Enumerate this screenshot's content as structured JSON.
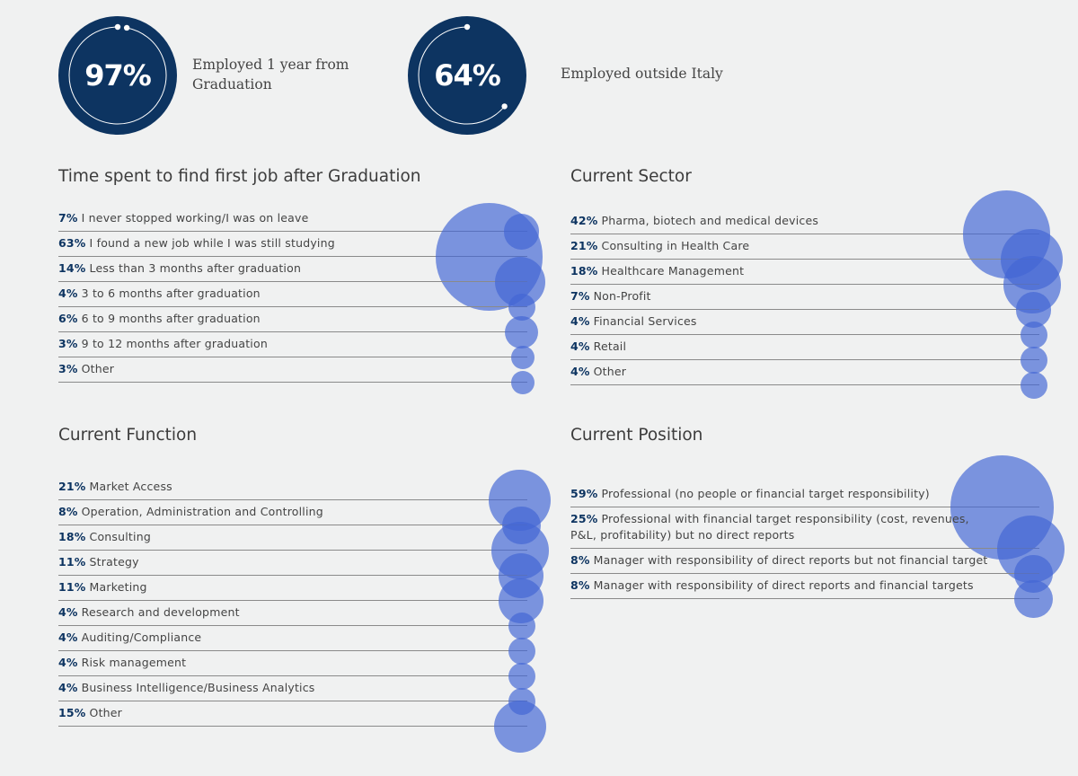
{
  "kpis": [
    {
      "value": "97%",
      "label": "Employed 1 year from Graduation",
      "fraction": 0.97
    },
    {
      "value": "64%",
      "label": "Employed outside Italy",
      "fraction": 0.64
    }
  ],
  "colors": {
    "navy": "#0d3461",
    "bubble": "#4265d4",
    "background": "#f0f1f1",
    "rule": "#8a8a8a"
  },
  "sections": {
    "time_to_job": {
      "title": "Time spent to find first job after Graduation",
      "rows": [
        {
          "pct": "7%",
          "label": "I never stopped working/I was on leave"
        },
        {
          "pct": "63%",
          "label": "I found a new job while I was still studying"
        },
        {
          "pct": "14%",
          "label": "Less than 3 months after graduation"
        },
        {
          "pct": "4%",
          "label": "3 to 6 months after graduation"
        },
        {
          "pct": "6%",
          "label": "6 to 9 months after graduation"
        },
        {
          "pct": "3%",
          "label": "9 to 12 months after graduation"
        },
        {
          "pct": "3%",
          "label": "Other"
        }
      ]
    },
    "sector": {
      "title": "Current Sector",
      "rows": [
        {
          "pct": "42%",
          "label": "Pharma, biotech and medical devices"
        },
        {
          "pct": "21%",
          "label": "Consulting in Health Care"
        },
        {
          "pct": "18%",
          "label": "Healthcare Management"
        },
        {
          "pct": "7%",
          "label": "Non-Profit"
        },
        {
          "pct": "4%",
          "label": "Financial Services"
        },
        {
          "pct": "4%",
          "label": "Retail"
        },
        {
          "pct": "4%",
          "label": "Other"
        }
      ]
    },
    "function": {
      "title": "Current Function",
      "rows": [
        {
          "pct": "21%",
          "label": "Market Access"
        },
        {
          "pct": "8%",
          "label": "Operation, Administration and Controlling"
        },
        {
          "pct": "18%",
          "label": "Consulting"
        },
        {
          "pct": "11%",
          "label": "Strategy"
        },
        {
          "pct": "11%",
          "label": "Marketing"
        },
        {
          "pct": "4%",
          "label": "Research and development"
        },
        {
          "pct": "4%",
          "label": "Auditing/Compliance"
        },
        {
          "pct": "4%",
          "label": "Risk management"
        },
        {
          "pct": "4%",
          "label": "Business Intelligence/Business Analytics"
        },
        {
          "pct": "15%",
          "label": "Other"
        }
      ]
    },
    "position": {
      "title": "Current Position",
      "rows": [
        {
          "pct": "59%",
          "label": "Professional (no people or financial target responsibility)"
        },
        {
          "pct": "25%",
          "label": "Professional with financial target responsibility (cost, revenues, P&L, profitability) but no direct reports"
        },
        {
          "pct": "8%",
          "label": "Manager with responsibility of direct reports but not financial target"
        },
        {
          "pct": "8%",
          "label": "Manager with responsibility of direct reports and financial targets"
        }
      ]
    }
  },
  "chart_data": [
    {
      "type": "bubble",
      "title": "Time spent to find first job after Graduation",
      "categories": [
        "I never stopped working/I was on leave",
        "I found a new job while I was still studying",
        "Less than 3 months after graduation",
        "3 to 6 months after graduation",
        "6 to 9 months after graduation",
        "9 to 12 months after graduation",
        "Other"
      ],
      "values": [
        7,
        63,
        14,
        4,
        6,
        3,
        3
      ],
      "unit": "%"
    },
    {
      "type": "bubble",
      "title": "Current Sector",
      "categories": [
        "Pharma, biotech and medical devices",
        "Consulting in Health Care",
        "Healthcare Management",
        "Non-Profit",
        "Financial Services",
        "Retail",
        "Other"
      ],
      "values": [
        42,
        21,
        18,
        7,
        4,
        4,
        4
      ],
      "unit": "%"
    },
    {
      "type": "bubble",
      "title": "Current Function",
      "categories": [
        "Market Access",
        "Operation, Administration and Controlling",
        "Consulting",
        "Strategy",
        "Marketing",
        "Research and development",
        "Auditing/Compliance",
        "Risk management",
        "Business Intelligence/Business Analytics",
        "Other"
      ],
      "values": [
        21,
        8,
        18,
        11,
        11,
        4,
        4,
        4,
        4,
        15
      ],
      "unit": "%"
    },
    {
      "type": "bubble",
      "title": "Current Position",
      "categories": [
        "Professional (no people or financial target responsibility)",
        "Professional with financial target responsibility (cost, revenues, P&L, profitability) but no direct reports",
        "Manager with responsibility of direct reports but not financial target",
        "Manager with responsibility of direct reports and financial targets"
      ],
      "values": [
        59,
        25,
        8,
        8
      ],
      "unit": "%"
    }
  ]
}
